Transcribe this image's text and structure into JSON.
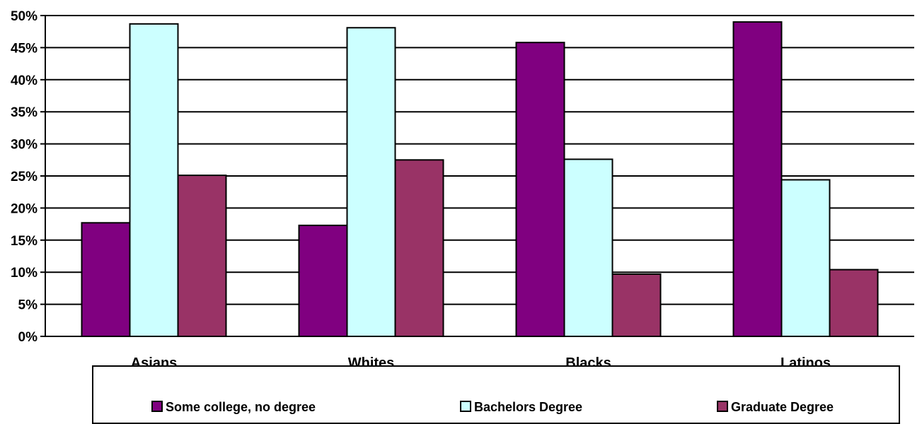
{
  "chart_data": {
    "type": "bar",
    "categories": [
      "Asians",
      "Whites",
      "Blacks",
      "Latinos"
    ],
    "series": [
      {
        "name": "Some college, no degree",
        "color": "#800080",
        "values": [
          17.7,
          17.3,
          45.8,
          49.0
        ]
      },
      {
        "name": "Bachelors Degree",
        "color": "#ccffff",
        "values": [
          48.7,
          48.1,
          27.6,
          24.4
        ]
      },
      {
        "name": "Graduate Degree",
        "color": "#993366",
        "values": [
          25.1,
          27.5,
          9.7,
          10.4
        ]
      }
    ],
    "yticks": [
      "0%",
      "5%",
      "10%",
      "15%",
      "20%",
      "25%",
      "30%",
      "35%",
      "40%",
      "45%",
      "50%"
    ],
    "ylim": [
      0,
      50
    ],
    "grid": true,
    "legend": "bottom"
  }
}
